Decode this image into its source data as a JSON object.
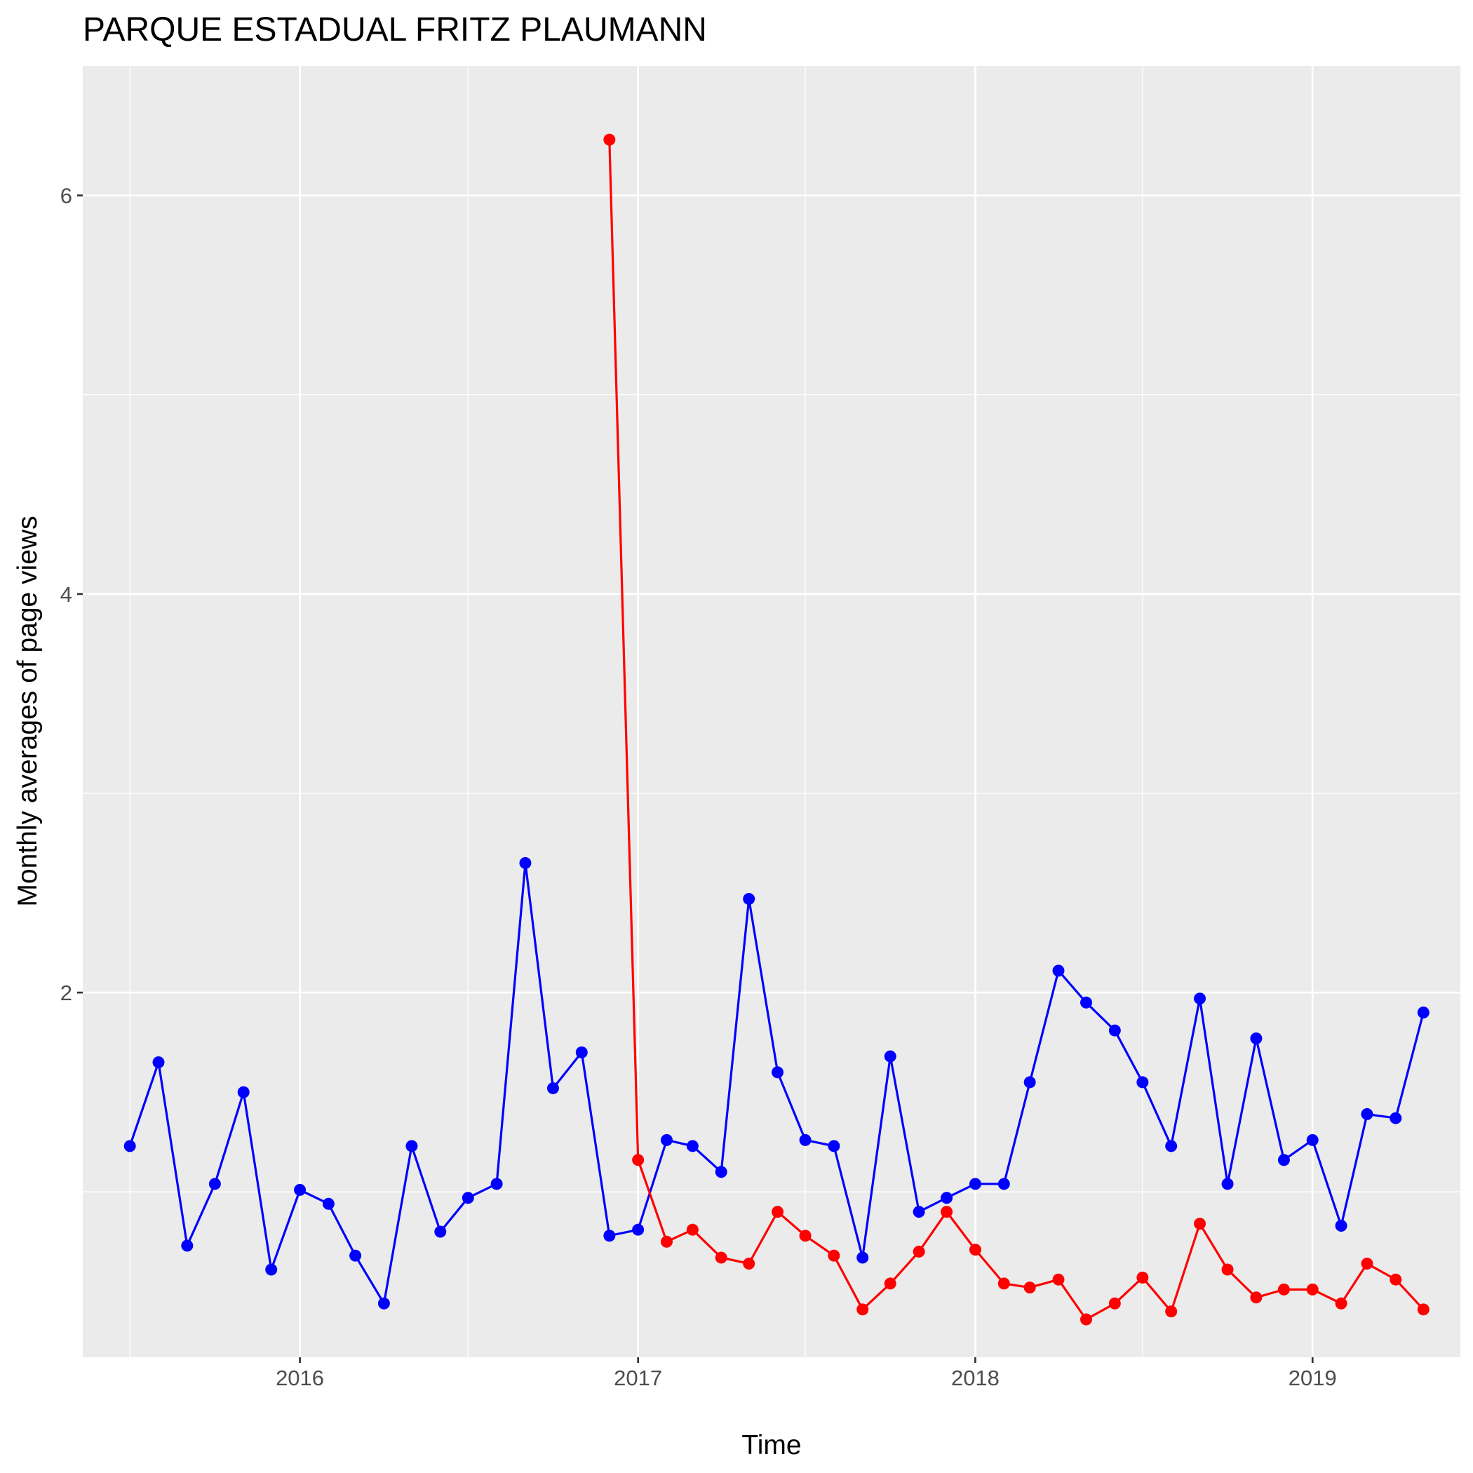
{
  "chart_data": {
    "type": "line",
    "title": "PARQUE ESTADUAL FRITZ PLAUMANN",
    "xlabel": "Time",
    "ylabel": "Monthly averages of page views",
    "x_ticks": [
      "2016",
      "2017",
      "2018",
      "2019"
    ],
    "y_ticks": [
      "2",
      "4",
      "6"
    ],
    "xlim": [
      "2015-05-11",
      "2019-06-10"
    ],
    "ylim": [
      0.17,
      6.65
    ],
    "grid": true,
    "background": "#ebebeb",
    "grid_color": "#ffffff",
    "series": [
      {
        "color": "#0000ff",
        "points": [
          [
            "2015-07-01",
            1.23
          ],
          [
            "2015-08-01",
            1.65
          ],
          [
            "2015-09-01",
            0.73
          ],
          [
            "2015-10-01",
            1.04
          ],
          [
            "2015-11-01",
            1.5
          ],
          [
            "2015-12-01",
            0.61
          ],
          [
            "2016-01-01",
            1.01
          ],
          [
            "2016-02-01",
            0.94
          ],
          [
            "2016-03-01",
            0.68
          ],
          [
            "2016-04-01",
            0.44
          ],
          [
            "2016-05-01",
            1.23
          ],
          [
            "2016-06-01",
            0.8
          ],
          [
            "2016-07-01",
            0.97
          ],
          [
            "2016-08-01",
            1.04
          ],
          [
            "2016-09-01",
            2.65
          ],
          [
            "2016-10-01",
            1.52
          ],
          [
            "2016-11-01",
            1.7
          ],
          [
            "2016-12-01",
            0.78
          ],
          [
            "2017-01-01",
            0.81
          ],
          [
            "2017-02-01",
            1.26
          ],
          [
            "2017-03-01",
            1.23
          ],
          [
            "2017-04-01",
            1.1
          ],
          [
            "2017-05-01",
            2.47
          ],
          [
            "2017-06-01",
            1.6
          ],
          [
            "2017-07-01",
            1.26
          ],
          [
            "2017-08-01",
            1.23
          ],
          [
            "2017-09-01",
            0.67
          ],
          [
            "2017-10-01",
            1.68
          ],
          [
            "2017-11-01",
            0.9
          ],
          [
            "2017-12-01",
            0.97
          ],
          [
            "2018-01-01",
            1.04
          ],
          [
            "2018-02-01",
            1.04
          ],
          [
            "2018-03-01",
            1.55
          ],
          [
            "2018-04-01",
            2.11
          ],
          [
            "2018-05-01",
            1.95
          ],
          [
            "2018-06-01",
            1.81
          ],
          [
            "2018-07-01",
            1.55
          ],
          [
            "2018-08-01",
            1.23
          ],
          [
            "2018-09-01",
            1.97
          ],
          [
            "2018-10-01",
            1.04
          ],
          [
            "2018-11-01",
            1.77
          ],
          [
            "2018-12-01",
            1.16
          ],
          [
            "2019-01-01",
            1.26
          ],
          [
            "2019-02-01",
            0.83
          ],
          [
            "2019-03-01",
            1.39
          ],
          [
            "2019-04-01",
            1.37
          ],
          [
            "2019-05-01",
            1.9
          ]
        ]
      },
      {
        "color": "#ff0000",
        "points": [
          [
            "2016-12-01",
            6.28
          ],
          [
            "2017-01-01",
            1.16
          ],
          [
            "2017-02-01",
            0.75
          ],
          [
            "2017-03-01",
            0.81
          ],
          [
            "2017-04-01",
            0.67
          ],
          [
            "2017-05-01",
            0.64
          ],
          [
            "2017-06-01",
            0.9
          ],
          [
            "2017-07-01",
            0.78
          ],
          [
            "2017-08-01",
            0.68
          ],
          [
            "2017-09-01",
            0.41
          ],
          [
            "2017-10-01",
            0.54
          ],
          [
            "2017-11-01",
            0.7
          ],
          [
            "2017-12-01",
            0.9
          ],
          [
            "2018-01-01",
            0.71
          ],
          [
            "2018-02-01",
            0.54
          ],
          [
            "2018-03-01",
            0.52
          ],
          [
            "2018-04-01",
            0.56
          ],
          [
            "2018-05-01",
            0.36
          ],
          [
            "2018-06-01",
            0.44
          ],
          [
            "2018-07-01",
            0.57
          ],
          [
            "2018-08-01",
            0.4
          ],
          [
            "2018-09-01",
            0.84
          ],
          [
            "2018-10-01",
            0.61
          ],
          [
            "2018-11-01",
            0.47
          ],
          [
            "2018-12-01",
            0.51
          ],
          [
            "2019-01-01",
            0.51
          ],
          [
            "2019-02-01",
            0.44
          ],
          [
            "2019-03-01",
            0.64
          ],
          [
            "2019-04-01",
            0.56
          ],
          [
            "2019-05-01",
            0.41
          ]
        ]
      }
    ]
  }
}
